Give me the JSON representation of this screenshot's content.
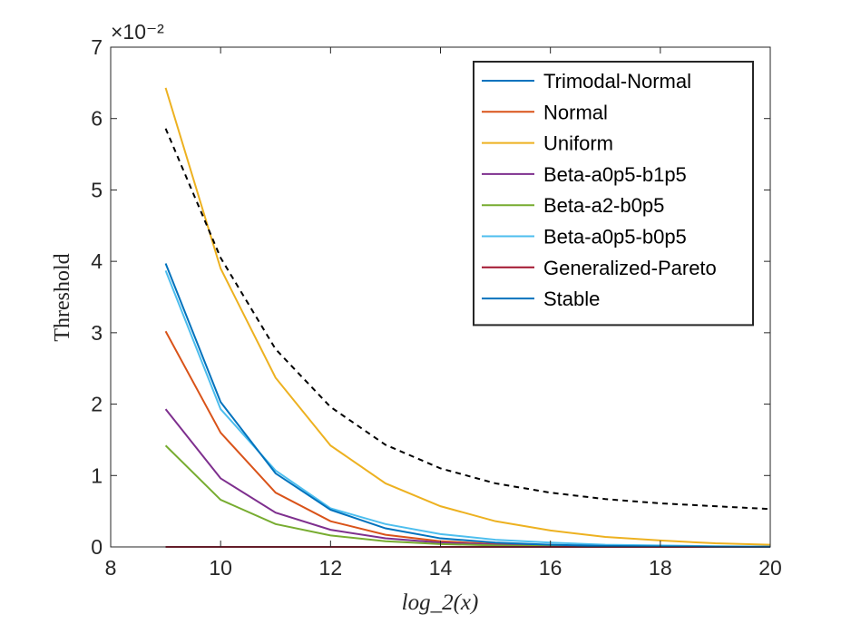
{
  "chart_data": {
    "type": "line",
    "xlabel": "log_2(x)",
    "ylabel": "Threshold",
    "xlim": [
      8,
      20
    ],
    "ylim": [
      0,
      7
    ],
    "y_multiplier": "×10⁻²",
    "xticks": [
      8,
      10,
      12,
      14,
      16,
      18,
      20
    ],
    "yticks": [
      0,
      1,
      2,
      3,
      4,
      5,
      6,
      7
    ],
    "grid": false,
    "legend_position": "top-right",
    "x": [
      9,
      10,
      11,
      12,
      13,
      14,
      15,
      16,
      17,
      18,
      19,
      20
    ],
    "series": [
      {
        "name": "Trimodal-Normal",
        "color": "#0072BD",
        "style": "solid",
        "values": [
          0,
          0,
          0,
          0,
          0,
          0,
          0,
          0,
          0,
          0,
          0,
          0
        ]
      },
      {
        "name": "Normal",
        "color": "#D95319",
        "style": "solid",
        "values": [
          3.02,
          1.6,
          0.76,
          0.36,
          0.17,
          0.08,
          0.04,
          0.02,
          0.01,
          0.005,
          0.002,
          0.001
        ]
      },
      {
        "name": "Uniform",
        "color": "#EDB120",
        "style": "solid",
        "values": [
          6.43,
          3.9,
          2.37,
          1.42,
          0.89,
          0.57,
          0.36,
          0.23,
          0.14,
          0.09,
          0.05,
          0.03
        ]
      },
      {
        "name": "Beta-a0p5-b1p5",
        "color": "#7E2F8E",
        "style": "solid",
        "values": [
          1.93,
          0.96,
          0.48,
          0.24,
          0.12,
          0.06,
          0.03,
          0.015,
          0.008,
          0.004,
          0.002,
          0.001
        ]
      },
      {
        "name": "Beta-a2-b0p5",
        "color": "#77AC30",
        "style": "solid",
        "values": [
          1.42,
          0.66,
          0.32,
          0.16,
          0.08,
          0.04,
          0.02,
          0.01,
          0.005,
          0.002,
          0.001,
          0.0005
        ]
      },
      {
        "name": "Beta-a0p5-b0p5",
        "color": "#4DBEEE",
        "style": "solid",
        "values": [
          3.87,
          1.93,
          1.07,
          0.54,
          0.32,
          0.18,
          0.1,
          0.06,
          0.03,
          0.02,
          0.01,
          0.005
        ]
      },
      {
        "name": "Generalized-Pareto",
        "color": "#A2142F",
        "style": "solid",
        "values": [
          0,
          0,
          0,
          0,
          0,
          0,
          0,
          0,
          0,
          0,
          0,
          0
        ]
      },
      {
        "name": "Stable",
        "color": "#0072BD",
        "style": "solid",
        "values": [
          3.97,
          2.03,
          1.03,
          0.52,
          0.26,
          0.12,
          0.06,
          0.03,
          0.015,
          0.008,
          0.004,
          0.002
        ]
      },
      {
        "name": "",
        "color": "#000000",
        "style": "dashed",
        "in_legend": false,
        "values": [
          5.86,
          4.05,
          2.77,
          1.96,
          1.43,
          1.1,
          0.89,
          0.76,
          0.67,
          0.61,
          0.57,
          0.53
        ]
      }
    ]
  }
}
